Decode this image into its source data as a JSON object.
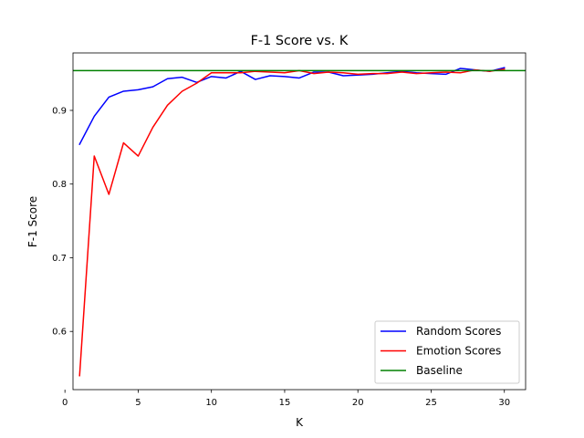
{
  "chart_data": {
    "type": "line",
    "title": "F-1 Score vs. K",
    "xlabel": "K",
    "ylabel": "F-1 Score",
    "xlim": [
      0.55,
      31.45
    ],
    "ylim": [
      0.521,
      0.978
    ],
    "xticks": [
      0,
      5,
      10,
      15,
      20,
      25,
      30
    ],
    "yticks": [
      0.6,
      0.7,
      0.8,
      0.9
    ],
    "ytick_labels": [
      "0.6",
      "0.7",
      "0.8",
      "0.9"
    ],
    "grid": false,
    "legend_position": "lower-right",
    "x": [
      1,
      2,
      3,
      4,
      5,
      6,
      7,
      8,
      9,
      10,
      11,
      12,
      13,
      14,
      15,
      16,
      17,
      18,
      19,
      20,
      21,
      22,
      23,
      24,
      25,
      26,
      27,
      28,
      29,
      30
    ],
    "series": [
      {
        "name": "Random Scores",
        "color": "#0000ff",
        "values": [
          0.854,
          0.892,
          0.918,
          0.926,
          0.928,
          0.932,
          0.943,
          0.945,
          0.938,
          0.946,
          0.944,
          0.953,
          0.942,
          0.947,
          0.946,
          0.944,
          0.952,
          0.952,
          0.947,
          0.948,
          0.949,
          0.951,
          0.953,
          0.951,
          0.95,
          0.949,
          0.957,
          0.955,
          0.953,
          0.958
        ]
      },
      {
        "name": "Emotion Scores",
        "color": "#ff0000",
        "values": [
          0.54,
          0.838,
          0.786,
          0.856,
          0.838,
          0.877,
          0.907,
          0.926,
          0.937,
          0.951,
          0.951,
          0.951,
          0.953,
          0.952,
          0.951,
          0.954,
          0.95,
          0.952,
          0.951,
          0.949,
          0.95,
          0.95,
          0.952,
          0.95,
          0.951,
          0.952,
          0.951,
          0.955,
          0.953,
          0.956
        ]
      },
      {
        "name": "Baseline",
        "color": "#008000",
        "constant": 0.954
      }
    ]
  }
}
